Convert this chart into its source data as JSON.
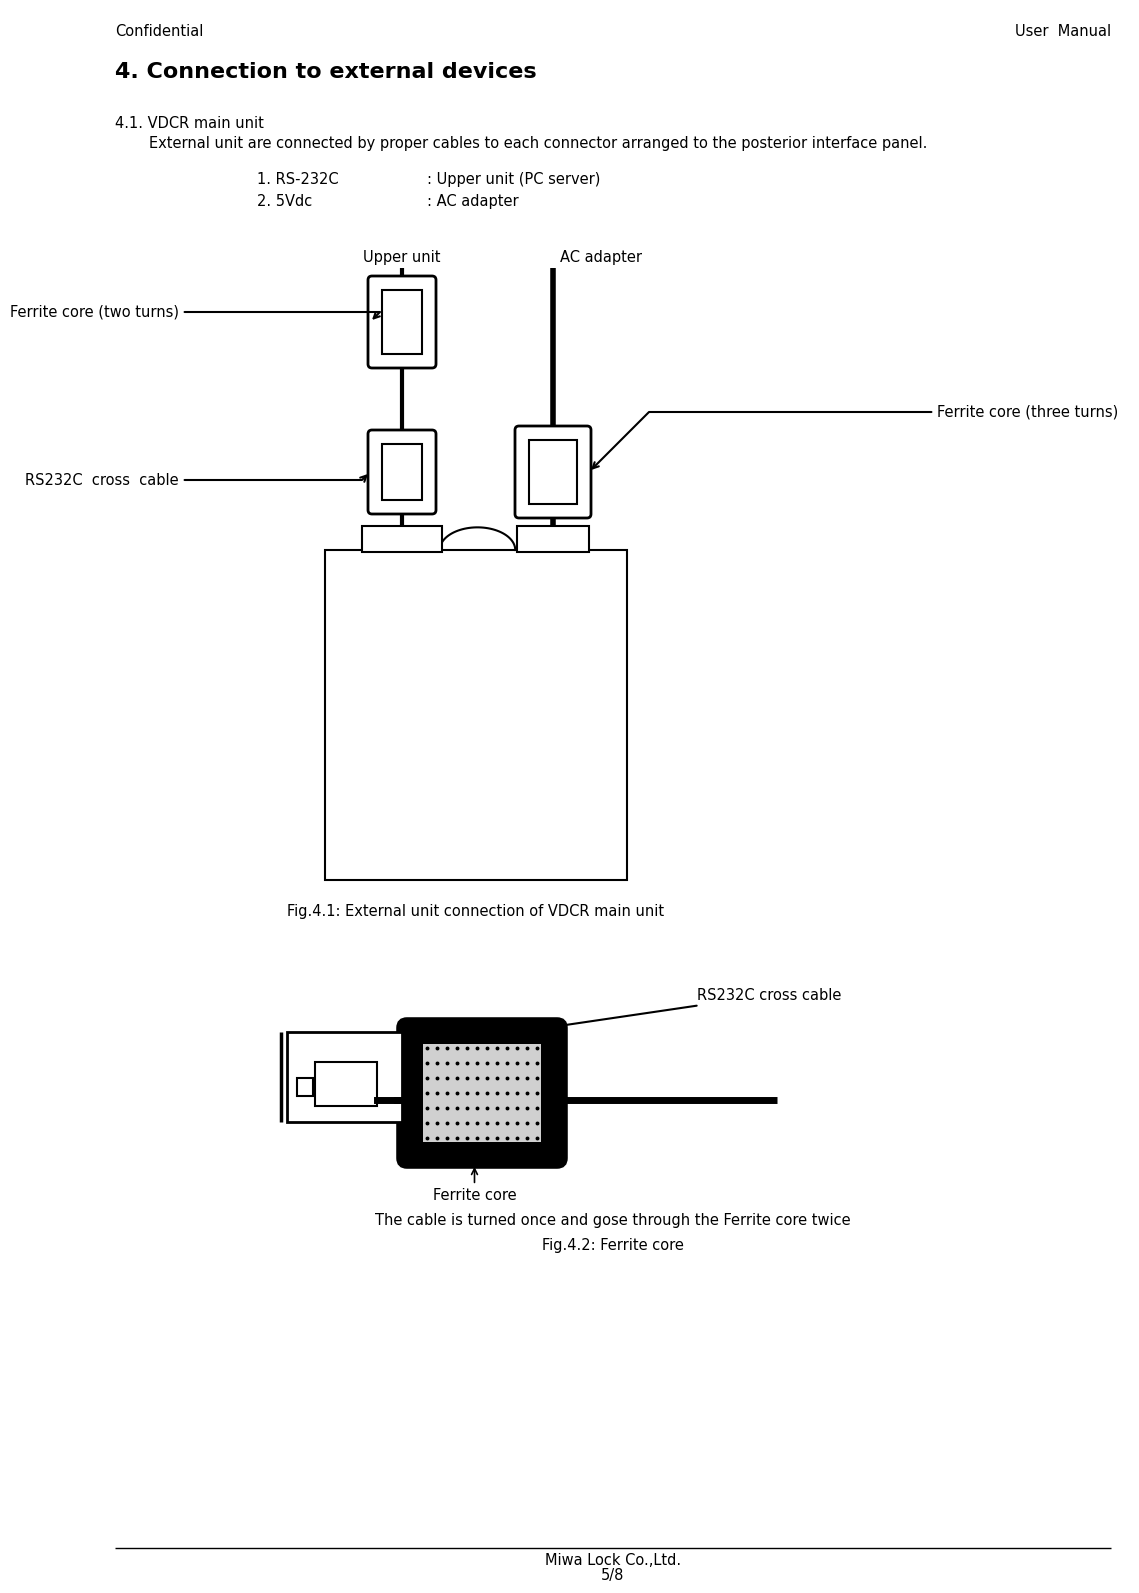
{
  "page_title_left": "Confidential",
  "page_title_right": "User  Manual",
  "section_title": "4. Connection to external devices",
  "subsection": "4.1. VDCR main unit",
  "description": "External unit are connected by proper cables to each connector arranged to the posterior interface panel.",
  "item1_label": "1. RS-232C",
  "item1_desc": ": Upper unit (PC server)",
  "item2_label": "2. 5Vdc",
  "item2_desc": ": AC adapter",
  "fig1_caption": "Fig.4.1: External unit connection of VDCR main unit",
  "fig2_caption": "Fig.4.2: Ferrite core",
  "fig2_note": "The cable is turned once and gose through the Ferrite core twice",
  "label_upper_unit": "Upper unit",
  "label_ac_adapter": "AC adapter",
  "label_ferrite_two": "Ferrite core (two turns)",
  "label_ferrite_three": "Ferrite core (three turns)",
  "label_rs232c_cross": "RS232C  cross  cable",
  "label_rs232c": "RS-232C",
  "label_5vdc": "5Vdc",
  "label_rs232c_cross2": "RS232C cross cable",
  "label_ferrite_core": "Ferrite core",
  "footer_company": "Miwa Lock Co.,Ltd.",
  "footer_page": "5/8",
  "bg_color": "#ffffff",
  "text_color": "#000000"
}
